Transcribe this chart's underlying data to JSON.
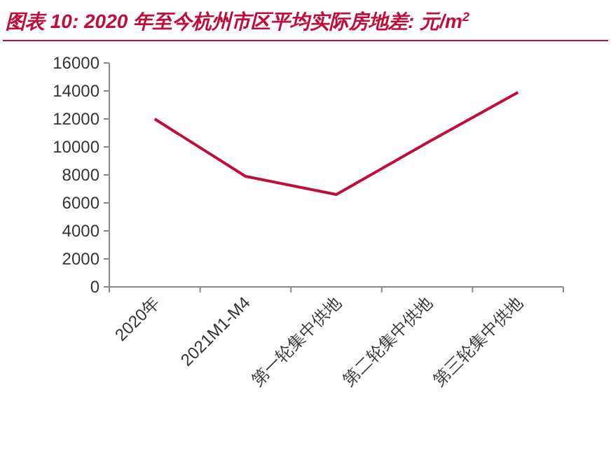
{
  "chart_data": {
    "type": "line",
    "title": "图表 10: 2020 年至今杭州市区平均实际房地差: 元/m$^{2}$",
    "categories": [
      "2020年",
      "2021M1-M4",
      "第一轮集中供地",
      "第二轮集中供地",
      "第三轮集中供地"
    ],
    "values": [
      12000,
      7900,
      6600,
      10300,
      13900
    ],
    "color": "#c00d3a",
    "ylim": [
      0,
      16000
    ],
    "yticks": [
      0,
      2000,
      4000,
      6000,
      8000,
      10000,
      12000,
      14000,
      16000
    ],
    "grid": false,
    "marker": "none",
    "line_style": "solid"
  }
}
